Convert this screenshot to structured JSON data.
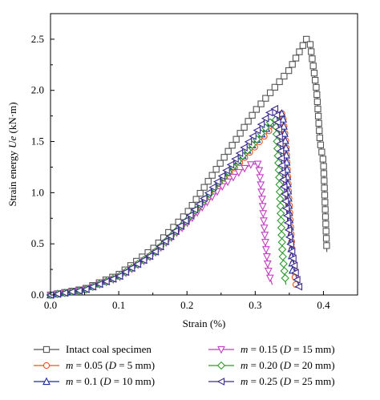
{
  "chart_data": {
    "type": "line",
    "xlabel": "Strain (%)",
    "ylabel": {
      "prefix": "Strain energy ",
      "italic": "Ue",
      "suffix": " (kN·m)"
    },
    "xlim": [
      0.0,
      0.45
    ],
    "ylim": [
      0.0,
      2.75
    ],
    "xticks": [
      "0.0",
      "0.1",
      "0.2",
      "0.3",
      "0.4"
    ],
    "xtick_values": [
      0.0,
      0.1,
      0.2,
      0.3,
      0.4
    ],
    "yticks": [
      "0.0",
      "0.5",
      "1.0",
      "1.5",
      "2.0",
      "2.5"
    ],
    "ytick_values": [
      0.0,
      0.5,
      1.0,
      1.5,
      2.0,
      2.5
    ],
    "grid": false,
    "legend_placement": "bottom",
    "series": [
      {
        "name": "Intact coal specimen",
        "m": "",
        "D": "",
        "color": "#555555",
        "marker": "square",
        "x": [
          0.0,
          0.05,
          0.1,
          0.15,
          0.2,
          0.25,
          0.3,
          0.35,
          0.375,
          0.38,
          0.39,
          0.395,
          0.4,
          0.405
        ],
        "y": [
          0.0,
          0.06,
          0.2,
          0.45,
          0.8,
          1.3,
          1.8,
          2.2,
          2.5,
          2.48,
          2.0,
          1.5,
          1.3,
          0.42
        ]
      },
      {
        "name": "m = 0.05 (D = 5 mm)",
        "m": "0.05",
        "D": "5",
        "color": "#e8551f",
        "marker": "circle",
        "x": [
          0.0,
          0.05,
          0.1,
          0.15,
          0.2,
          0.25,
          0.3,
          0.33,
          0.34,
          0.345,
          0.35,
          0.355,
          0.36
        ],
        "y": [
          0.0,
          0.05,
          0.18,
          0.4,
          0.72,
          1.1,
          1.45,
          1.68,
          1.78,
          1.5,
          0.9,
          0.35,
          0.08
        ]
      },
      {
        "name": "m = 0.1 (D = 10 mm)",
        "m": "0.1",
        "D": "10",
        "color": "#1f2a9e",
        "marker": "triangle-up",
        "x": [
          0.0,
          0.05,
          0.1,
          0.15,
          0.2,
          0.25,
          0.3,
          0.33,
          0.34,
          0.345,
          0.35,
          0.355
        ],
        "y": [
          0.0,
          0.05,
          0.18,
          0.4,
          0.73,
          1.12,
          1.5,
          1.73,
          1.78,
          1.45,
          0.8,
          0.2
        ]
      },
      {
        "name": "m = 0.15 (D = 15 mm)",
        "m": "0.15",
        "D": "15",
        "color": "#c23fc0",
        "marker": "triangle-down",
        "x": [
          0.0,
          0.05,
          0.1,
          0.15,
          0.2,
          0.25,
          0.28,
          0.295,
          0.305,
          0.31,
          0.315,
          0.32,
          0.325
        ],
        "y": [
          0.0,
          0.05,
          0.17,
          0.39,
          0.7,
          1.05,
          1.22,
          1.28,
          1.28,
          0.95,
          0.5,
          0.2,
          0.1
        ]
      },
      {
        "name": "m = 0.20 (D = 20 mm)",
        "m": "0.20",
        "D": "20",
        "color": "#2e9a2e",
        "marker": "diamond",
        "x": [
          0.0,
          0.05,
          0.1,
          0.15,
          0.2,
          0.25,
          0.3,
          0.32,
          0.33,
          0.335,
          0.34,
          0.345
        ],
        "y": [
          0.0,
          0.05,
          0.18,
          0.4,
          0.73,
          1.12,
          1.5,
          1.68,
          1.72,
          1.18,
          0.4,
          0.1
        ]
      },
      {
        "name": "m = 0.25 (D = 25 mm)",
        "m": "0.25",
        "D": "25",
        "color": "#3c2a8e",
        "marker": "triangle-left",
        "x": [
          0.0,
          0.05,
          0.1,
          0.15,
          0.2,
          0.25,
          0.3,
          0.325,
          0.33,
          0.335,
          0.34,
          0.35,
          0.36,
          0.365
        ],
        "y": [
          0.0,
          0.05,
          0.18,
          0.4,
          0.74,
          1.15,
          1.58,
          1.82,
          1.82,
          1.6,
          1.2,
          0.58,
          0.18,
          0.06
        ]
      }
    ]
  }
}
